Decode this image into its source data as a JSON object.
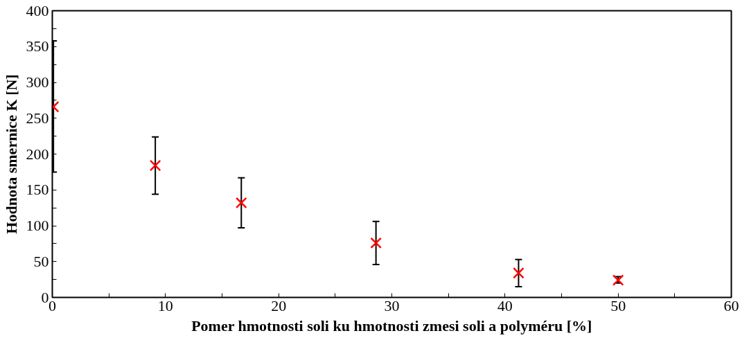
{
  "chart_data": {
    "type": "scatter",
    "xlabel": "Pomer hmotnosti soli ku hmotnosti zmesi soli a polyméru [%]",
    "ylabel": "Hodnota smernice K [N]",
    "x": [
      0.1,
      9.1,
      16.7,
      28.6,
      41.2,
      50.0
    ],
    "series": [
      {
        "color": "#ff0000",
        "values": [
          266,
          184,
          132,
          76,
          34,
          24
        ],
        "errors": [
          [
            175,
            358
          ],
          [
            144,
            224
          ],
          [
            97,
            167
          ],
          [
            46,
            106
          ],
          [
            15,
            53
          ],
          [
            20,
            29
          ]
        ]
      }
    ],
    "xlim": [
      0,
      60
    ],
    "ylim": [
      0,
      400
    ],
    "xticks": [
      0,
      {
        "value": 5,
        "label": null
      },
      10,
      {
        "value": 15,
        "label": null
      },
      20,
      {
        "value": 25,
        "label": null
      },
      30,
      {
        "value": 35,
        "label": null
      },
      40,
      {
        "value": 45,
        "label": null
      },
      50,
      {
        "value": 55,
        "label": null
      },
      60
    ],
    "yticks": [
      0,
      {
        "value": 25,
        "label": null
      },
      50,
      {
        "value": 75,
        "label": null
      },
      100,
      {
        "value": 125,
        "label": null
      },
      150,
      {
        "value": 175,
        "label": null
      },
      200,
      {
        "value": 225,
        "label": null
      },
      250,
      {
        "value": 275,
        "label": null
      },
      300,
      {
        "value": 325,
        "label": null
      },
      350,
      {
        "value": 375,
        "label": null
      },
      400
    ],
    "grid": false,
    "marker": "cross"
  }
}
